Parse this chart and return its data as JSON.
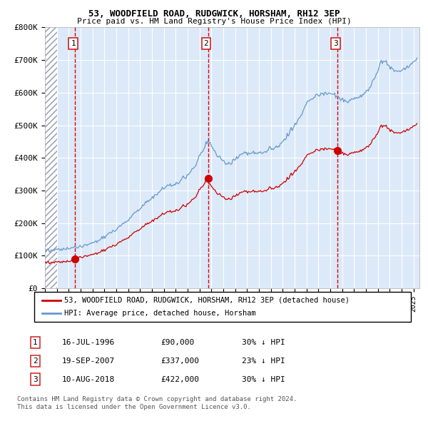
{
  "title1": "53, WOODFIELD ROAD, RUDGWICK, HORSHAM, RH12 3EP",
  "title2": "Price paid vs. HM Land Registry's House Price Index (HPI)",
  "sale1_date": "16-JUL-1996",
  "sale1_price": 90000,
  "sale1_pct": "30% ↓ HPI",
  "sale1_year": 1996.54,
  "sale2_date": "19-SEP-2007",
  "sale2_price": 337000,
  "sale2_pct": "23% ↓ HPI",
  "sale2_year": 2007.71,
  "sale3_date": "10-AUG-2018",
  "sale3_price": 422000,
  "sale3_pct": "30% ↓ HPI",
  "sale3_year": 2018.6,
  "legend_red": "53, WOODFIELD ROAD, RUDGWICK, HORSHAM, RH12 3EP (detached house)",
  "legend_blue": "HPI: Average price, detached house, Horsham",
  "footer1": "Contains HM Land Registry data © Crown copyright and database right 2024.",
  "footer2": "This data is licensed under the Open Government Licence v3.0.",
  "xmin": 1994.0,
  "xmax": 2025.5,
  "ymin": 0,
  "ymax": 800000,
  "bg_color": "#dce9f8",
  "red_line_color": "#cc0000",
  "blue_line_color": "#6699cc",
  "red_dot_color": "#cc0000",
  "vline_color": "#dd0000",
  "grid_color": "#ffffff",
  "box_edge_color": "#cc2222",
  "hpi_keypoints": [
    [
      1994.0,
      118000
    ],
    [
      1995.0,
      118000
    ],
    [
      1996.0,
      122000
    ],
    [
      1997.0,
      128000
    ],
    [
      1998.0,
      138000
    ],
    [
      1999.0,
      158000
    ],
    [
      2000.0,
      182000
    ],
    [
      2001.0,
      210000
    ],
    [
      2002.0,
      248000
    ],
    [
      2003.0,
      278000
    ],
    [
      2004.0,
      308000
    ],
    [
      2005.0,
      322000
    ],
    [
      2005.5,
      330000
    ],
    [
      2006.5,
      368000
    ],
    [
      2007.5,
      440000
    ],
    [
      2007.75,
      452000
    ],
    [
      2008.5,
      408000
    ],
    [
      2009.3,
      378000
    ],
    [
      2009.8,
      388000
    ],
    [
      2010.5,
      412000
    ],
    [
      2011.5,
      418000
    ],
    [
      2012.0,
      413000
    ],
    [
      2012.5,
      418000
    ],
    [
      2013.0,
      428000
    ],
    [
      2013.5,
      433000
    ],
    [
      2014.0,
      453000
    ],
    [
      2014.5,
      473000
    ],
    [
      2015.0,
      498000
    ],
    [
      2015.5,
      528000
    ],
    [
      2016.0,
      568000
    ],
    [
      2016.5,
      582000
    ],
    [
      2017.0,
      592000
    ],
    [
      2017.5,
      598000
    ],
    [
      2018.0,
      598000
    ],
    [
      2018.5,
      592000
    ],
    [
      2019.0,
      578000
    ],
    [
      2019.5,
      572000
    ],
    [
      2020.0,
      578000
    ],
    [
      2020.5,
      588000
    ],
    [
      2021.0,
      598000
    ],
    [
      2021.5,
      628000
    ],
    [
      2022.0,
      668000
    ],
    [
      2022.3,
      698000
    ],
    [
      2022.8,
      692000
    ],
    [
      2023.0,
      678000
    ],
    [
      2023.5,
      663000
    ],
    [
      2024.0,
      668000
    ],
    [
      2024.5,
      678000
    ],
    [
      2025.25,
      698000
    ]
  ]
}
